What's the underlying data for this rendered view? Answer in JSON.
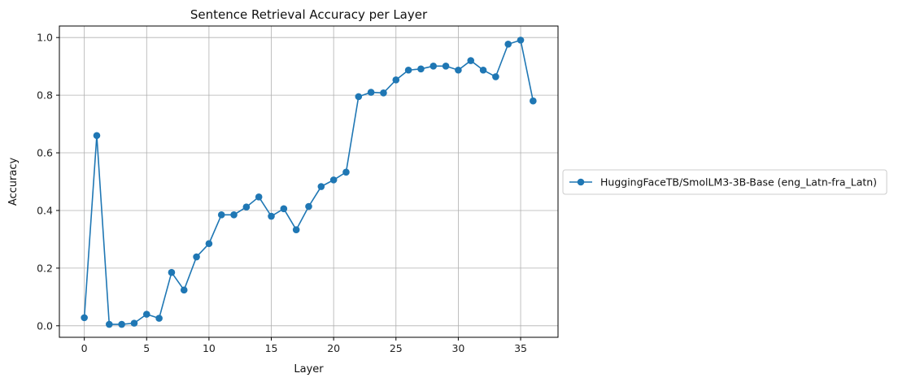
{
  "chart_data": {
    "type": "line",
    "title": "Sentence Retrieval Accuracy per Layer",
    "xlabel": "Layer",
    "ylabel": "Accuracy",
    "xlim": [
      -2,
      38
    ],
    "ylim": [
      -0.04,
      1.04
    ],
    "xticks": [
      0,
      5,
      10,
      15,
      20,
      25,
      30,
      35
    ],
    "yticks": [
      0.0,
      0.2,
      0.4,
      0.6,
      0.8,
      1.0
    ],
    "grid": true,
    "legend_position": "right-outside",
    "series": [
      {
        "name": "HuggingFaceTB/SmolLM3-3B-Base (eng_Latn-fra_Latn)",
        "color": "#1f77b4",
        "marker": "circle",
        "x": [
          0,
          1,
          2,
          3,
          4,
          5,
          6,
          7,
          8,
          9,
          10,
          11,
          12,
          13,
          14,
          15,
          16,
          17,
          18,
          19,
          20,
          21,
          22,
          23,
          24,
          25,
          26,
          27,
          28,
          29,
          30,
          31,
          32,
          33,
          34,
          35,
          36
        ],
        "y": [
          0.028,
          0.66,
          0.005,
          0.005,
          0.009,
          0.04,
          0.026,
          0.185,
          0.124,
          0.239,
          0.285,
          0.385,
          0.385,
          0.412,
          0.447,
          0.38,
          0.406,
          0.333,
          0.414,
          0.483,
          0.506,
          0.533,
          0.795,
          0.81,
          0.808,
          0.853,
          0.887,
          0.891,
          0.901,
          0.901,
          0.887,
          0.92,
          0.887,
          0.864,
          0.977,
          0.991,
          0.78
        ]
      }
    ]
  }
}
